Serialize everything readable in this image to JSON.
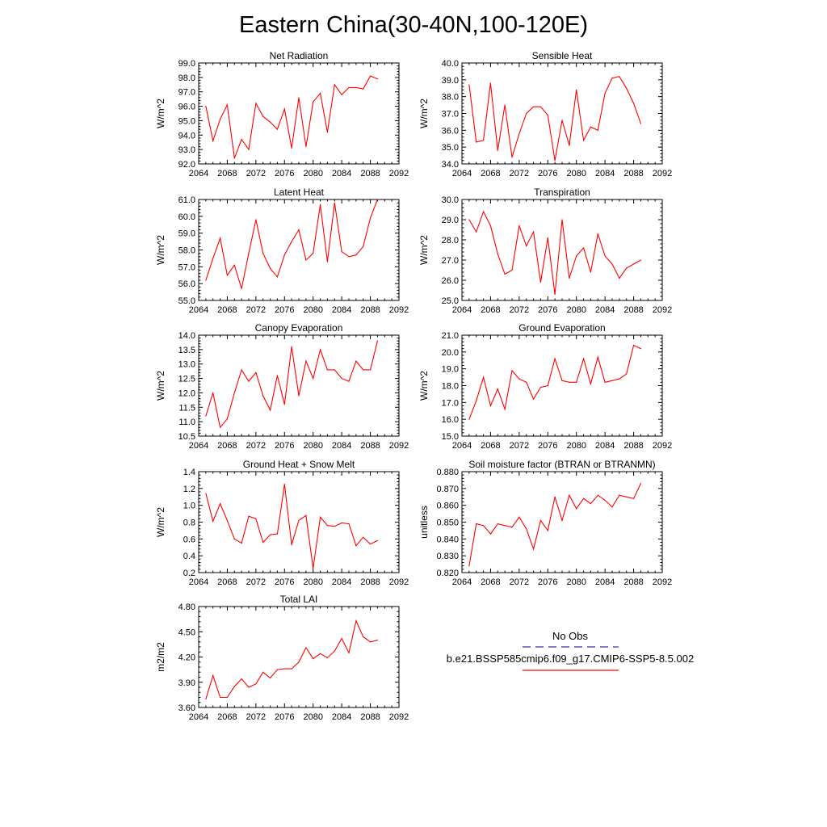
{
  "title": "Eastern China(30-40N,100-120E)",
  "colors": {
    "series": "#ff0000",
    "obs": "#3333aa",
    "axis": "#000000"
  },
  "legend": {
    "obs_label": "No Obs",
    "case_label": "b.e21.BSSP585cmip6.f09_g17.CMIP6-SSP5-8.5.002"
  },
  "chart_data": [
    {
      "type": "line",
      "title": "Net Radiation",
      "ylabel": "W/m^2",
      "xlim": [
        2064,
        2092
      ],
      "xticks": [
        "2064",
        "2068",
        "2072",
        "2076",
        "2080",
        "2084",
        "2088",
        "2092"
      ],
      "ylim": [
        92.0,
        99.0
      ],
      "yticks": [
        "92.0",
        "93.0",
        "94.0",
        "95.0",
        "96.0",
        "97.0",
        "98.0",
        "99.0"
      ],
      "x": [
        2065,
        2066,
        2067,
        2068,
        2069,
        2070,
        2071,
        2072,
        2073,
        2074,
        2075,
        2076,
        2077,
        2078,
        2079,
        2080,
        2081,
        2082,
        2083,
        2084,
        2085,
        2086,
        2087,
        2088,
        2089
      ],
      "values": [
        96.0,
        93.6,
        95.1,
        96.1,
        92.4,
        93.7,
        93.0,
        96.2,
        95.3,
        94.9,
        94.4,
        95.8,
        93.1,
        96.6,
        93.2,
        96.3,
        96.9,
        94.2,
        97.5,
        96.8,
        97.3,
        97.3,
        97.2,
        98.1,
        97.9
      ]
    },
    {
      "type": "line",
      "title": "Sensible Heat",
      "ylabel": "W/m^2",
      "xlim": [
        2064,
        2092
      ],
      "xticks": [
        "2064",
        "2068",
        "2072",
        "2076",
        "2080",
        "2084",
        "2088",
        "2092"
      ],
      "ylim": [
        34.0,
        40.0
      ],
      "yticks": [
        "34.0",
        "35.0",
        "36.0",
        "37.0",
        "38.0",
        "39.0",
        "40.0"
      ],
      "x": [
        2065,
        2066,
        2067,
        2068,
        2069,
        2070,
        2071,
        2072,
        2073,
        2074,
        2075,
        2076,
        2077,
        2078,
        2079,
        2080,
        2081,
        2082,
        2083,
        2084,
        2085,
        2086,
        2087,
        2088,
        2089
      ],
      "values": [
        38.7,
        35.3,
        35.4,
        38.8,
        34.8,
        37.5,
        34.4,
        35.8,
        37.0,
        37.4,
        37.4,
        36.9,
        34.2,
        36.6,
        35.1,
        38.4,
        35.4,
        36.2,
        36.0,
        38.2,
        39.1,
        39.2,
        38.5,
        37.6,
        36.4
      ]
    },
    {
      "type": "line",
      "title": "Latent Heat",
      "ylabel": "W/m^2",
      "xlim": [
        2064,
        2092
      ],
      "xticks": [
        "2064",
        "2068",
        "2072",
        "2076",
        "2080",
        "2084",
        "2088",
        "2092"
      ],
      "ylim": [
        55.0,
        61.0
      ],
      "yticks": [
        "55.0",
        "56.0",
        "57.0",
        "58.0",
        "59.0",
        "60.0",
        "61.0"
      ],
      "x": [
        2065,
        2066,
        2067,
        2068,
        2069,
        2070,
        2071,
        2072,
        2073,
        2074,
        2075,
        2076,
        2077,
        2078,
        2079,
        2080,
        2081,
        2082,
        2083,
        2084,
        2085,
        2086,
        2087,
        2088,
        2089
      ],
      "values": [
        56.2,
        57.5,
        58.7,
        56.5,
        57.1,
        55.7,
        57.8,
        59.8,
        57.8,
        56.9,
        56.4,
        57.7,
        58.5,
        59.2,
        57.4,
        57.8,
        60.7,
        57.3,
        60.8,
        57.9,
        57.6,
        57.7,
        58.2,
        59.9,
        61.0
      ]
    },
    {
      "type": "line",
      "title": "Transpiration",
      "ylabel": "W/m^2",
      "xlim": [
        2064,
        2092
      ],
      "xticks": [
        "2064",
        "2068",
        "2072",
        "2076",
        "2080",
        "2084",
        "2088",
        "2092"
      ],
      "ylim": [
        25.0,
        30.0
      ],
      "yticks": [
        "25.0",
        "26.0",
        "27.0",
        "28.0",
        "29.0",
        "30.0"
      ],
      "x": [
        2065,
        2066,
        2067,
        2068,
        2069,
        2070,
        2071,
        2072,
        2073,
        2074,
        2075,
        2076,
        2077,
        2078,
        2079,
        2080,
        2081,
        2082,
        2083,
        2084,
        2085,
        2086,
        2087,
        2088,
        2089
      ],
      "values": [
        29.0,
        28.4,
        29.4,
        28.7,
        27.3,
        26.3,
        26.5,
        28.7,
        27.7,
        28.4,
        25.9,
        28.1,
        25.3,
        29.0,
        26.1,
        27.2,
        27.6,
        26.4,
        28.3,
        27.2,
        26.8,
        26.1,
        26.6,
        26.8,
        27.0
      ]
    },
    {
      "type": "line",
      "title": "Canopy Evaporation",
      "ylabel": "W/m^2",
      "xlim": [
        2064,
        2092
      ],
      "xticks": [
        "2064",
        "2068",
        "2072",
        "2076",
        "2080",
        "2084",
        "2088",
        "2092"
      ],
      "ylim": [
        10.5,
        14.0
      ],
      "yticks": [
        "10.5",
        "11.0",
        "11.5",
        "12.0",
        "12.5",
        "13.0",
        "13.5",
        "14.0"
      ],
      "x": [
        2065,
        2066,
        2067,
        2068,
        2069,
        2070,
        2071,
        2072,
        2073,
        2074,
        2075,
        2076,
        2077,
        2078,
        2079,
        2080,
        2081,
        2082,
        2083,
        2084,
        2085,
        2086,
        2087,
        2088,
        2089
      ],
      "values": [
        11.2,
        12.0,
        10.8,
        11.1,
        12.0,
        12.8,
        12.4,
        12.7,
        11.9,
        11.4,
        12.6,
        11.6,
        13.6,
        11.9,
        13.1,
        12.5,
        13.5,
        12.8,
        12.8,
        12.5,
        12.4,
        13.1,
        12.8,
        12.8,
        13.8
      ]
    },
    {
      "type": "line",
      "title": "Ground Evaporation",
      "ylabel": "W/m^2",
      "xlim": [
        2064,
        2092
      ],
      "xticks": [
        "2064",
        "2068",
        "2072",
        "2076",
        "2080",
        "2084",
        "2088",
        "2092"
      ],
      "ylim": [
        15.0,
        21.0
      ],
      "yticks": [
        "15.0",
        "16.0",
        "17.0",
        "18.0",
        "19.0",
        "20.0",
        "21.0"
      ],
      "x": [
        2065,
        2066,
        2067,
        2068,
        2069,
        2070,
        2071,
        2072,
        2073,
        2074,
        2075,
        2076,
        2077,
        2078,
        2079,
        2080,
        2081,
        2082,
        2083,
        2084,
        2085,
        2086,
        2087,
        2088,
        2089
      ],
      "values": [
        16.0,
        17.1,
        18.5,
        16.8,
        17.8,
        16.6,
        18.9,
        18.4,
        18.2,
        17.2,
        17.9,
        18.0,
        19.6,
        18.3,
        18.2,
        18.2,
        19.6,
        18.1,
        19.7,
        18.2,
        18.3,
        18.4,
        18.7,
        20.4,
        20.2
      ]
    },
    {
      "type": "line",
      "title": "Ground Heat + Snow Melt",
      "ylabel": "W/m^2",
      "xlim": [
        2064,
        2092
      ],
      "xticks": [
        "2064",
        "2068",
        "2072",
        "2076",
        "2080",
        "2084",
        "2088",
        "2092"
      ],
      "ylim": [
        0.2,
        1.4
      ],
      "yticks": [
        "0.2",
        "0.4",
        "0.6",
        "0.8",
        "1.0",
        "1.2",
        "1.4"
      ],
      "x": [
        2065,
        2066,
        2067,
        2068,
        2069,
        2070,
        2071,
        2072,
        2073,
        2074,
        2075,
        2076,
        2077,
        2078,
        2079,
        2080,
        2081,
        2082,
        2083,
        2084,
        2085,
        2086,
        2087,
        2088,
        2089
      ],
      "values": [
        1.14,
        0.81,
        1.02,
        0.82,
        0.6,
        0.55,
        0.87,
        0.84,
        0.56,
        0.65,
        0.66,
        1.25,
        0.53,
        0.82,
        0.88,
        0.25,
        0.86,
        0.76,
        0.75,
        0.79,
        0.78,
        0.52,
        0.62,
        0.54,
        0.58
      ]
    },
    {
      "type": "line",
      "title": "Soil moisture factor (BTRAN or BTRANMN)",
      "ylabel": "unitless",
      "xlim": [
        2064,
        2092
      ],
      "xticks": [
        "2064",
        "2068",
        "2072",
        "2076",
        "2080",
        "2084",
        "2088",
        "2092"
      ],
      "ylim": [
        0.82,
        0.88
      ],
      "yticks": [
        "0.820",
        "0.830",
        "0.840",
        "0.850",
        "0.860",
        "0.870",
        "0.880"
      ],
      "x": [
        2065,
        2066,
        2067,
        2068,
        2069,
        2070,
        2071,
        2072,
        2073,
        2074,
        2075,
        2076,
        2077,
        2078,
        2079,
        2080,
        2081,
        2082,
        2083,
        2084,
        2085,
        2086,
        2087,
        2088,
        2089
      ],
      "values": [
        0.824,
        0.849,
        0.848,
        0.843,
        0.849,
        0.848,
        0.847,
        0.853,
        0.846,
        0.834,
        0.851,
        0.845,
        0.865,
        0.851,
        0.866,
        0.858,
        0.864,
        0.861,
        0.866,
        0.863,
        0.859,
        0.866,
        0.865,
        0.864,
        0.873
      ]
    },
    {
      "type": "line",
      "title": "Total LAI",
      "ylabel": "m2/m2",
      "xlim": [
        2064,
        2092
      ],
      "xticks": [
        "2064",
        "2068",
        "2072",
        "2076",
        "2080",
        "2084",
        "2088",
        "2092"
      ],
      "ylim": [
        3.6,
        4.8
      ],
      "yticks": [
        "3.60",
        "3.90",
        "4.20",
        "4.50",
        "4.80"
      ],
      "x": [
        2065,
        2066,
        2067,
        2068,
        2069,
        2070,
        2071,
        2072,
        2073,
        2074,
        2075,
        2076,
        2077,
        2078,
        2079,
        2080,
        2081,
        2082,
        2083,
        2084,
        2085,
        2086,
        2087,
        2088,
        2089
      ],
      "values": [
        3.7,
        3.98,
        3.72,
        3.72,
        3.85,
        3.94,
        3.84,
        3.88,
        4.02,
        3.95,
        4.05,
        4.06,
        4.06,
        4.14,
        4.31,
        4.18,
        4.24,
        4.19,
        4.27,
        4.42,
        4.25,
        4.63,
        4.44,
        4.38,
        4.4
      ]
    }
  ]
}
